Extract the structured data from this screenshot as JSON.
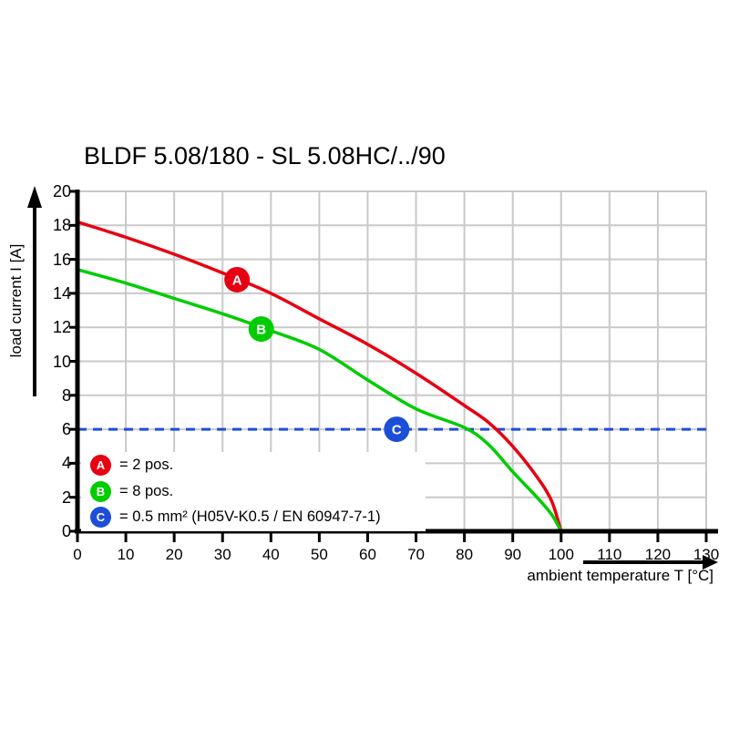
{
  "title": "BLDF 5.08/180 - SL 5.08HC/../90",
  "axes": {
    "y_label": "load current I [A]",
    "x_label": "ambient temperature T [°C]",
    "y_ticks": [
      0,
      2,
      4,
      6,
      8,
      10,
      12,
      14,
      16,
      18,
      20
    ],
    "x_ticks": [
      0,
      10,
      20,
      30,
      40,
      50,
      60,
      70,
      80,
      90,
      100,
      110,
      120,
      130
    ]
  },
  "legend": {
    "items": [
      {
        "letter": "A",
        "label": "= 2 pos.",
        "color": "#e60012"
      },
      {
        "letter": "B",
        "label": "= 8 pos.",
        "color": "#00cc00"
      },
      {
        "letter": "C",
        "label": "= 0.5 mm² (H05V-K0.5 / EN 60947-7-1)",
        "color": "#1c4ed8"
      }
    ]
  },
  "colors": {
    "red": "#e60012",
    "green": "#00cc00",
    "blue": "#1c4ed8",
    "grid": "#c9c9c9",
    "axis": "#000000"
  },
  "chart_data": {
    "type": "line",
    "xlabel": "ambient temperature T [°C]",
    "ylabel": "load current I [A]",
    "xlim": [
      0,
      130
    ],
    "ylim": [
      0,
      20
    ],
    "x_step": 10,
    "y_step": 2,
    "grid": true,
    "series": [
      {
        "name": "A",
        "label": "2 pos.",
        "color": "#e60012",
        "style": "solid",
        "points": [
          [
            0,
            18.2
          ],
          [
            10,
            17.3
          ],
          [
            20,
            16.3
          ],
          [
            30,
            15.2
          ],
          [
            40,
            14.0
          ],
          [
            50,
            12.5
          ],
          [
            60,
            11.0
          ],
          [
            70,
            9.3
          ],
          [
            80,
            7.4
          ],
          [
            85,
            6.4
          ],
          [
            90,
            5.0
          ],
          [
            95,
            3.2
          ],
          [
            98,
            1.8
          ],
          [
            100,
            0
          ]
        ]
      },
      {
        "name": "B",
        "label": "8 pos.",
        "color": "#00cc00",
        "style": "solid",
        "points": [
          [
            0,
            15.4
          ],
          [
            10,
            14.6
          ],
          [
            20,
            13.7
          ],
          [
            30,
            12.8
          ],
          [
            40,
            11.8
          ],
          [
            50,
            10.7
          ],
          [
            60,
            8.9
          ],
          [
            70,
            7.2
          ],
          [
            80,
            6.1
          ],
          [
            85,
            5.1
          ],
          [
            90,
            3.5
          ],
          [
            95,
            2.0
          ],
          [
            98,
            1.0
          ],
          [
            100,
            0
          ]
        ]
      },
      {
        "name": "C",
        "label": "0.5 mm² (H05V-K0.5 / EN 60947-7-1)",
        "color": "#1c4ed8",
        "style": "dashed",
        "points": [
          [
            0,
            6
          ],
          [
            130,
            6
          ]
        ]
      }
    ],
    "markers": [
      {
        "letter": "A",
        "t": 33,
        "i": 14.8,
        "color": "#e60012"
      },
      {
        "letter": "B",
        "t": 38,
        "i": 11.9,
        "color": "#00cc00"
      },
      {
        "letter": "C",
        "t": 66,
        "i": 6.0,
        "color": "#1c4ed8"
      }
    ],
    "legend_position": "lower-left"
  }
}
